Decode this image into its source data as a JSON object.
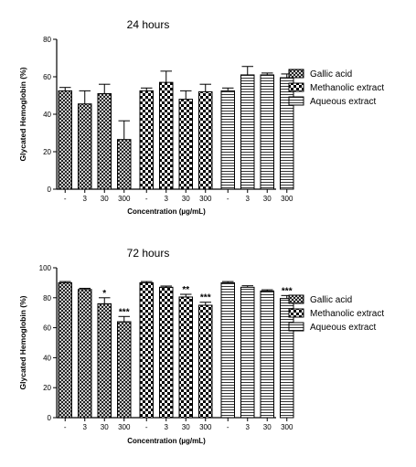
{
  "chart_data": [
    {
      "type": "bar",
      "title": "24 hours",
      "xlabel": "Concentration (µg/mL)",
      "ylabel": "Glycated Hemoglobin (%)",
      "ylim": [
        0,
        80
      ],
      "yticks": [
        0,
        20,
        40,
        60,
        80
      ],
      "categories": [
        "-",
        "3",
        "30",
        "300"
      ],
      "legend_position": "right",
      "grid": false,
      "series": [
        {
          "name": "Gallic acid",
          "pattern": "crosshatch",
          "values": [
            52.5,
            45.5,
            51,
            26.5
          ],
          "errors": [
            1.8,
            7,
            5,
            10
          ],
          "annotations": [
            "",
            "",
            "",
            ""
          ]
        },
        {
          "name": "Methanolic extract",
          "pattern": "checker",
          "values": [
            52.5,
            57,
            48,
            52
          ],
          "errors": [
            1.5,
            6,
            4.5,
            4
          ],
          "annotations": [
            "",
            "",
            "",
            ""
          ]
        },
        {
          "name": "Aqueous extract",
          "pattern": "horizontal",
          "values": [
            52.5,
            61,
            61,
            59.5
          ],
          "errors": [
            1.5,
            4.5,
            1,
            2
          ],
          "annotations": [
            "",
            "",
            "",
            ""
          ]
        }
      ]
    },
    {
      "type": "bar",
      "title": "72 hours",
      "xlabel": "Concentration (µg/mL)",
      "ylabel": "Glycated Hemoglobin (%)",
      "ylim": [
        0,
        100
      ],
      "yticks": [
        0,
        20,
        40,
        60,
        80,
        100
      ],
      "categories": [
        "-",
        "3",
        "30",
        "300"
      ],
      "legend_position": "right",
      "grid": false,
      "series": [
        {
          "name": "Gallic acid",
          "pattern": "crosshatch",
          "values": [
            90,
            85.5,
            76,
            64
          ],
          "errors": [
            0.8,
            0.8,
            4,
            3.5
          ],
          "annotations": [
            "",
            "",
            "*",
            "***"
          ]
        },
        {
          "name": "Methanolic extract",
          "pattern": "checker",
          "values": [
            90,
            87,
            80.5,
            75
          ],
          "errors": [
            0.8,
            0.8,
            1.8,
            2
          ],
          "annotations": [
            "",
            "",
            "**",
            "***"
          ]
        },
        {
          "name": "Aqueous extract",
          "pattern": "horizontal",
          "values": [
            90,
            87,
            84.5,
            79.5
          ],
          "errors": [
            0.8,
            1,
            0.8,
            2
          ],
          "annotations": [
            "",
            "",
            "",
            "***"
          ]
        }
      ]
    }
  ]
}
